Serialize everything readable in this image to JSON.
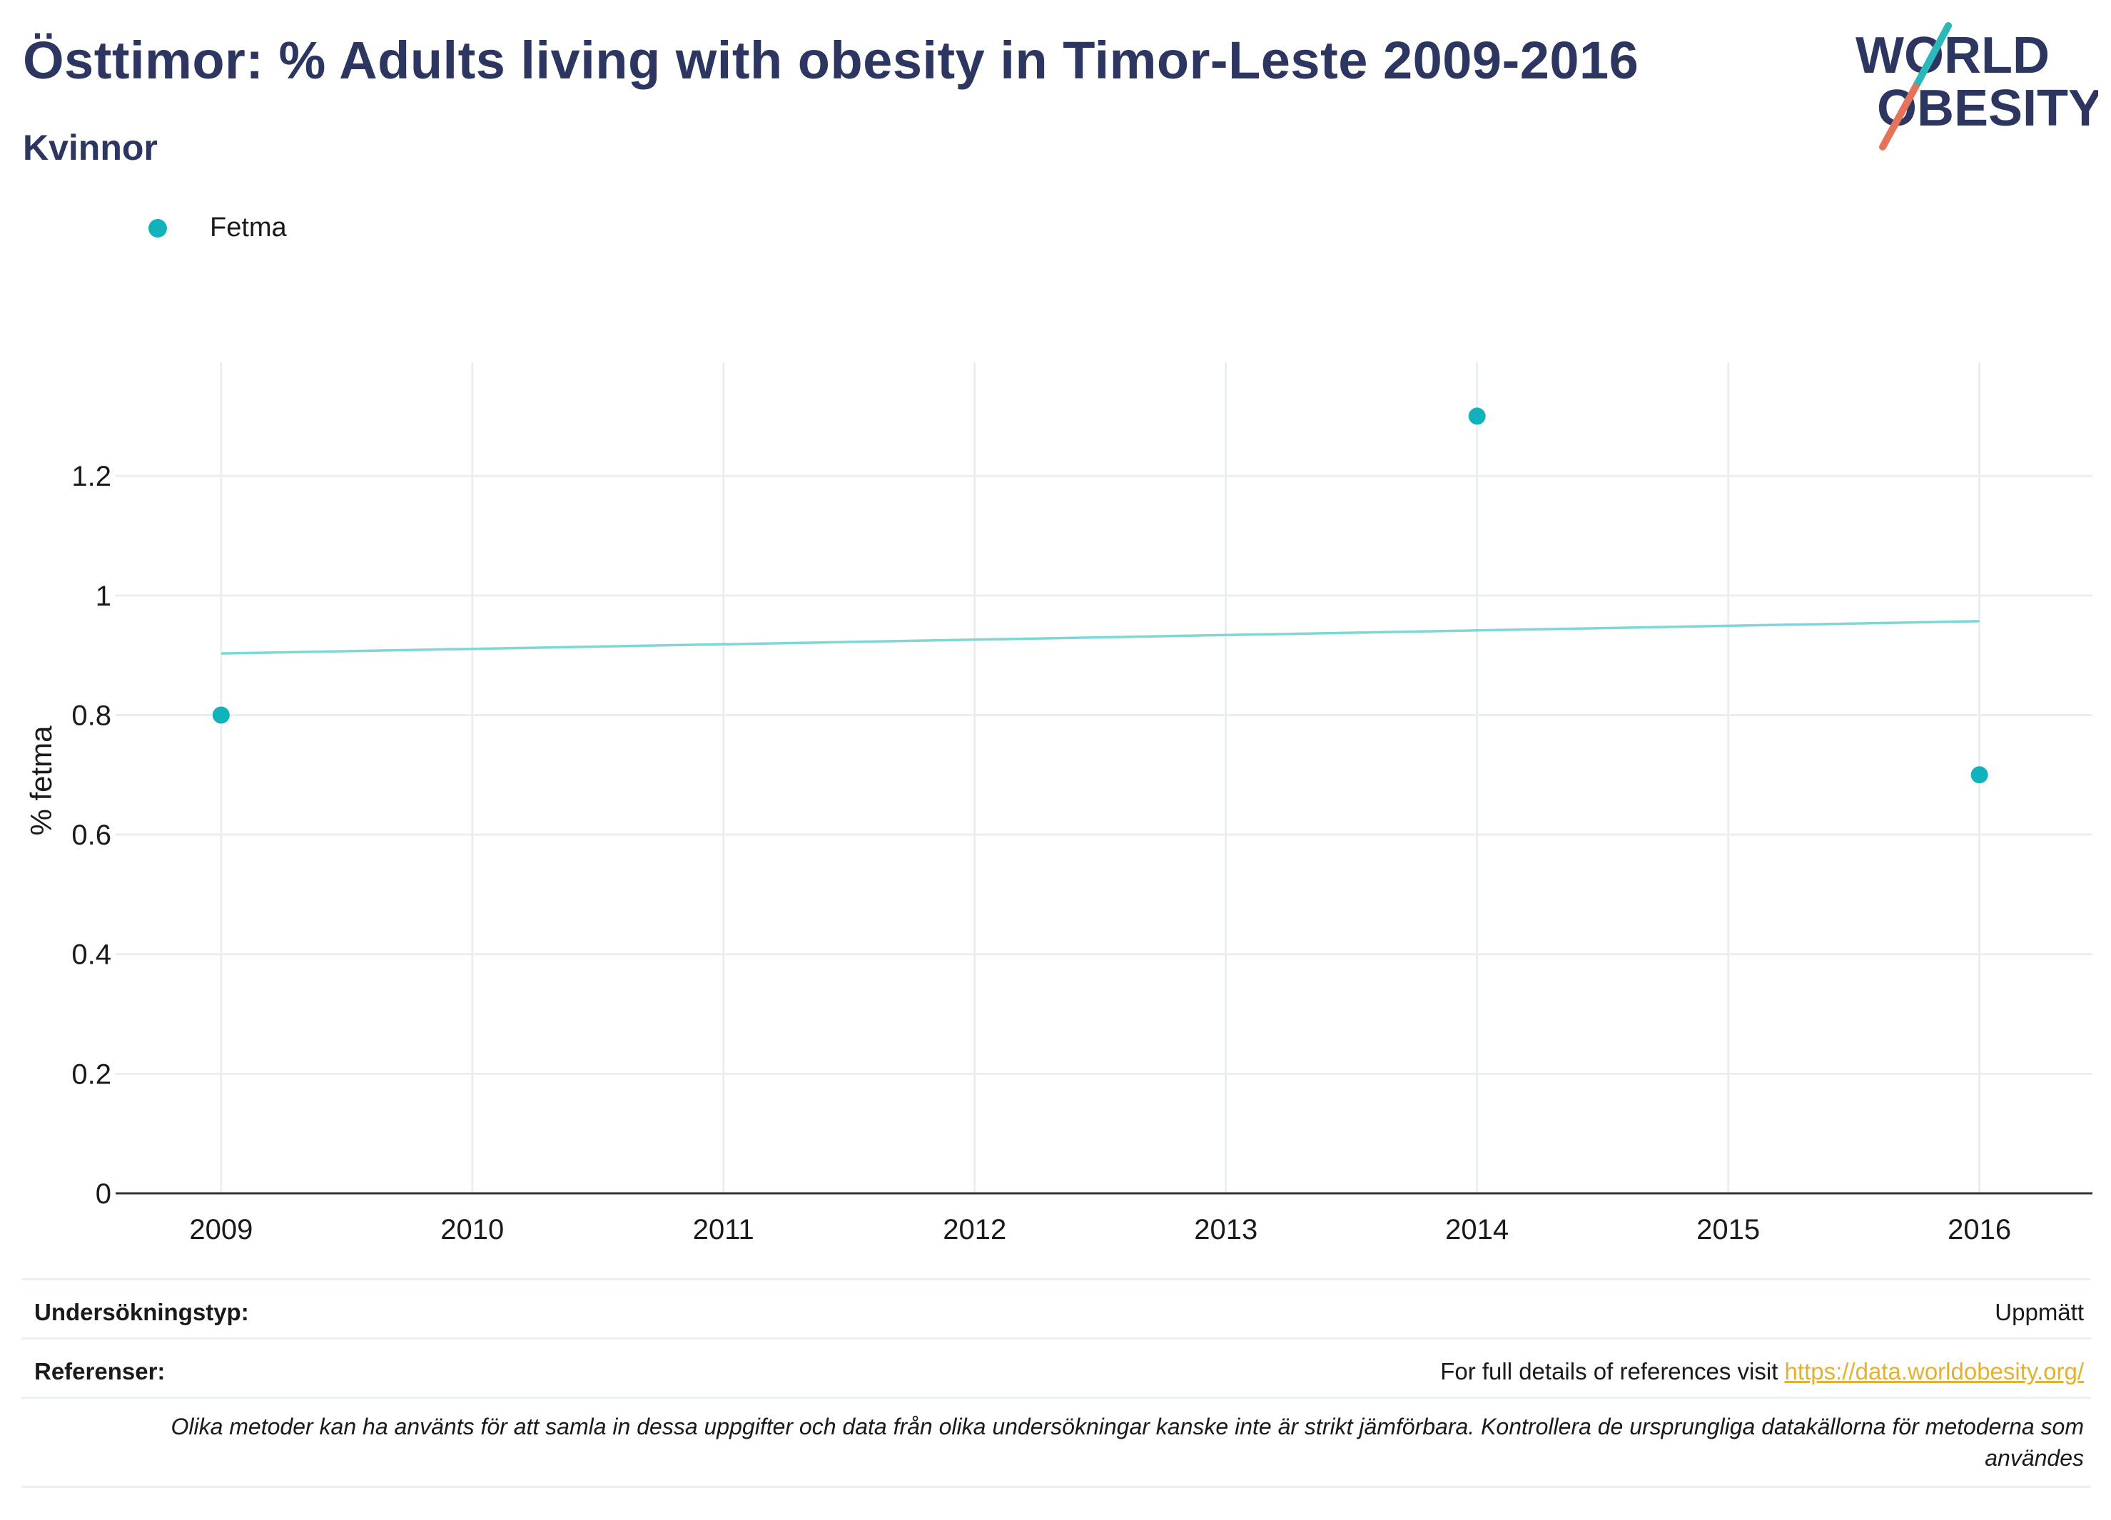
{
  "header": {
    "title": "Östtimor: % Adults living with obesity in Timor-Leste 2009-2016",
    "subtitle": "Kvinnor"
  },
  "logo": {
    "line1": "WORLD",
    "line2": "OBESITY",
    "text_color": "#2d3561",
    "slash_teal": "#2ab8b8",
    "slash_coral": "#e5735a"
  },
  "legend": {
    "label": "Fetma",
    "color": "#12b2bd"
  },
  "chart_data": {
    "type": "scatter",
    "title": "Östtimor: % Adults living with obesity in Timor-Leste 2009-2016",
    "subtitle": "Kvinnor",
    "xlabel": "",
    "ylabel": "% fetma",
    "x_ticks": [
      "2009",
      "2010",
      "2011",
      "2012",
      "2013",
      "2014",
      "2015",
      "2016"
    ],
    "y_ticks": [
      "0",
      "0.2",
      "0.4",
      "0.6",
      "0.8",
      "1",
      "1.2"
    ],
    "xlim": [
      2008.58,
      2016.45
    ],
    "ylim": [
      0,
      1.39
    ],
    "grid": true,
    "legend_position": "top-left",
    "series": [
      {
        "name": "Fetma",
        "color": "#12b2bd",
        "x": [
          2009,
          2014,
          2016
        ],
        "y": [
          0.8,
          1.3,
          0.7
        ]
      }
    ],
    "trendline": {
      "color": "#7fd6d6",
      "x": [
        2009,
        2016
      ],
      "y": [
        0.903,
        0.957
      ]
    }
  },
  "info": {
    "survey_label": "Undersökningstyp:",
    "survey_value": "Uppmätt",
    "ref_label": "Referenser:",
    "ref_text": "For full details of references visit ",
    "ref_link": "https://data.worldobesity.org/",
    "note": "Olika metoder kan ha använts för att samla in dessa uppgifter och data från olika undersökningar kanske inte är strikt jämförbara. Kontrollera de ursprungliga datakällorna för metoderna som användes"
  }
}
